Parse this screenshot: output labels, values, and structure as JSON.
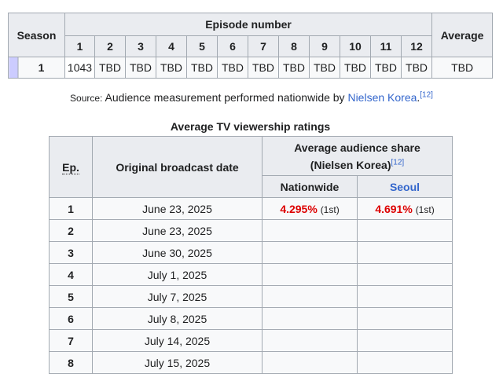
{
  "table1": {
    "season_header": "Season",
    "episode_number_header": "Episode number",
    "average_header": "Average",
    "episode_numbers": [
      "1",
      "2",
      "3",
      "4",
      "5",
      "6",
      "7",
      "8",
      "9",
      "10",
      "11",
      "12"
    ],
    "rows": [
      {
        "season": "1",
        "values": [
          "1043",
          "TBD",
          "TBD",
          "TBD",
          "TBD",
          "TBD",
          "TBD",
          "TBD",
          "TBD",
          "TBD",
          "TBD",
          "TBD"
        ],
        "average": "TBD",
        "stripe_color": "#ccccff"
      }
    ]
  },
  "source": {
    "label": "Source:",
    "text": "Audience measurement performed nationwide by",
    "link": "Nielsen Korea",
    "period": ".",
    "ref": "[12]"
  },
  "table2": {
    "caption": "Average TV viewership ratings",
    "headers": {
      "ep": "Ep.",
      "date": "Original broadcast date",
      "avg_line1": "Average audience share",
      "avg_line2": "(Nielsen Korea)",
      "avg_ref": "[12]",
      "nationwide": "Nationwide",
      "seoul": "Seoul"
    },
    "rows": [
      {
        "ep": "1",
        "date": "June 23, 2025",
        "nationwide": "4.295%",
        "nationwide_rank": "(1st)",
        "seoul": "4.691%",
        "seoul_rank": "(1st)"
      },
      {
        "ep": "2",
        "date": "June 23, 2025",
        "nationwide": "",
        "nationwide_rank": "",
        "seoul": "",
        "seoul_rank": ""
      },
      {
        "ep": "3",
        "date": "June 30, 2025",
        "nationwide": "",
        "nationwide_rank": "",
        "seoul": "",
        "seoul_rank": ""
      },
      {
        "ep": "4",
        "date": "July 1, 2025",
        "nationwide": "",
        "nationwide_rank": "",
        "seoul": "",
        "seoul_rank": ""
      },
      {
        "ep": "5",
        "date": "July 7, 2025",
        "nationwide": "",
        "nationwide_rank": "",
        "seoul": "",
        "seoul_rank": ""
      },
      {
        "ep": "6",
        "date": "July 8, 2025",
        "nationwide": "",
        "nationwide_rank": "",
        "seoul": "",
        "seoul_rank": ""
      },
      {
        "ep": "7",
        "date": "July 14, 2025",
        "nationwide": "",
        "nationwide_rank": "",
        "seoul": "",
        "seoul_rank": ""
      },
      {
        "ep": "8",
        "date": "July 15, 2025",
        "nationwide": "",
        "nationwide_rank": "",
        "seoul": "",
        "seoul_rank": ""
      }
    ]
  },
  "colors": {
    "header_bg": "#eaecf0",
    "cell_bg": "#f8f9fa",
    "border": "#a2a9b1",
    "link": "#3366cc",
    "highest_rating": "#dd0000"
  }
}
